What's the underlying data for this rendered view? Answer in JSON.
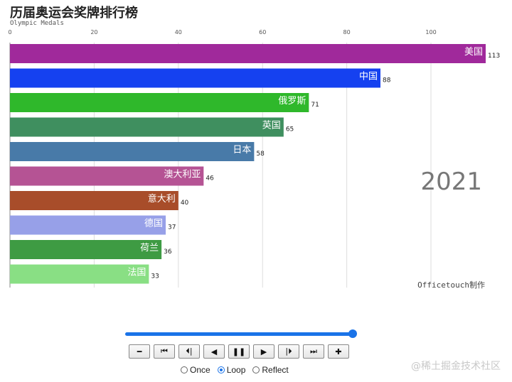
{
  "header": {
    "title": "历届奥运会奖牌排行榜",
    "subtitle": "Olympic Medals"
  },
  "chart_data": {
    "type": "bar",
    "orientation": "horizontal",
    "title": "历届奥运会奖牌排行榜",
    "subtitle": "Olympic Medals",
    "categories": [
      "美国",
      "中国",
      "俄罗斯",
      "英国",
      "日本",
      "澳大利亚",
      "意大利",
      "德国",
      "荷兰",
      "法国"
    ],
    "values": [
      113,
      88,
      71,
      65,
      58,
      46,
      40,
      37,
      36,
      33
    ],
    "colors": [
      "#a0299b",
      "#1541f0",
      "#2fb82b",
      "#3f8f5f",
      "#487aa8",
      "#b55394",
      "#a84d2a",
      "#97a0e8",
      "#3e9b43",
      "#89df84"
    ],
    "xlim": [
      0,
      113
    ],
    "xticks": [
      0,
      20,
      40,
      60,
      80,
      100
    ],
    "grid": true,
    "year": "2021",
    "credit": "Officetouch制作"
  },
  "controls": {
    "slider_value": 1.0,
    "slider_color": "#1a73e8",
    "buttons": [
      {
        "icon": "minus-icon",
        "glyph": "━"
      },
      {
        "icon": "first-frame-icon",
        "glyph": "⏮"
      },
      {
        "icon": "step-back-icon",
        "glyph": "⏴|"
      },
      {
        "icon": "play-reverse-icon",
        "glyph": "◀"
      },
      {
        "icon": "pause-icon",
        "glyph": "❚❚"
      },
      {
        "icon": "play-icon",
        "glyph": "▶"
      },
      {
        "icon": "step-forward-icon",
        "glyph": "|⏵"
      },
      {
        "icon": "last-frame-icon",
        "glyph": "⏭"
      },
      {
        "icon": "plus-icon",
        "glyph": "✚"
      }
    ],
    "modes": [
      {
        "label": "Once",
        "checked": false
      },
      {
        "label": "Loop",
        "checked": true
      },
      {
        "label": "Reflect",
        "checked": false
      }
    ]
  },
  "watermark": "@稀土掘金技术社区"
}
